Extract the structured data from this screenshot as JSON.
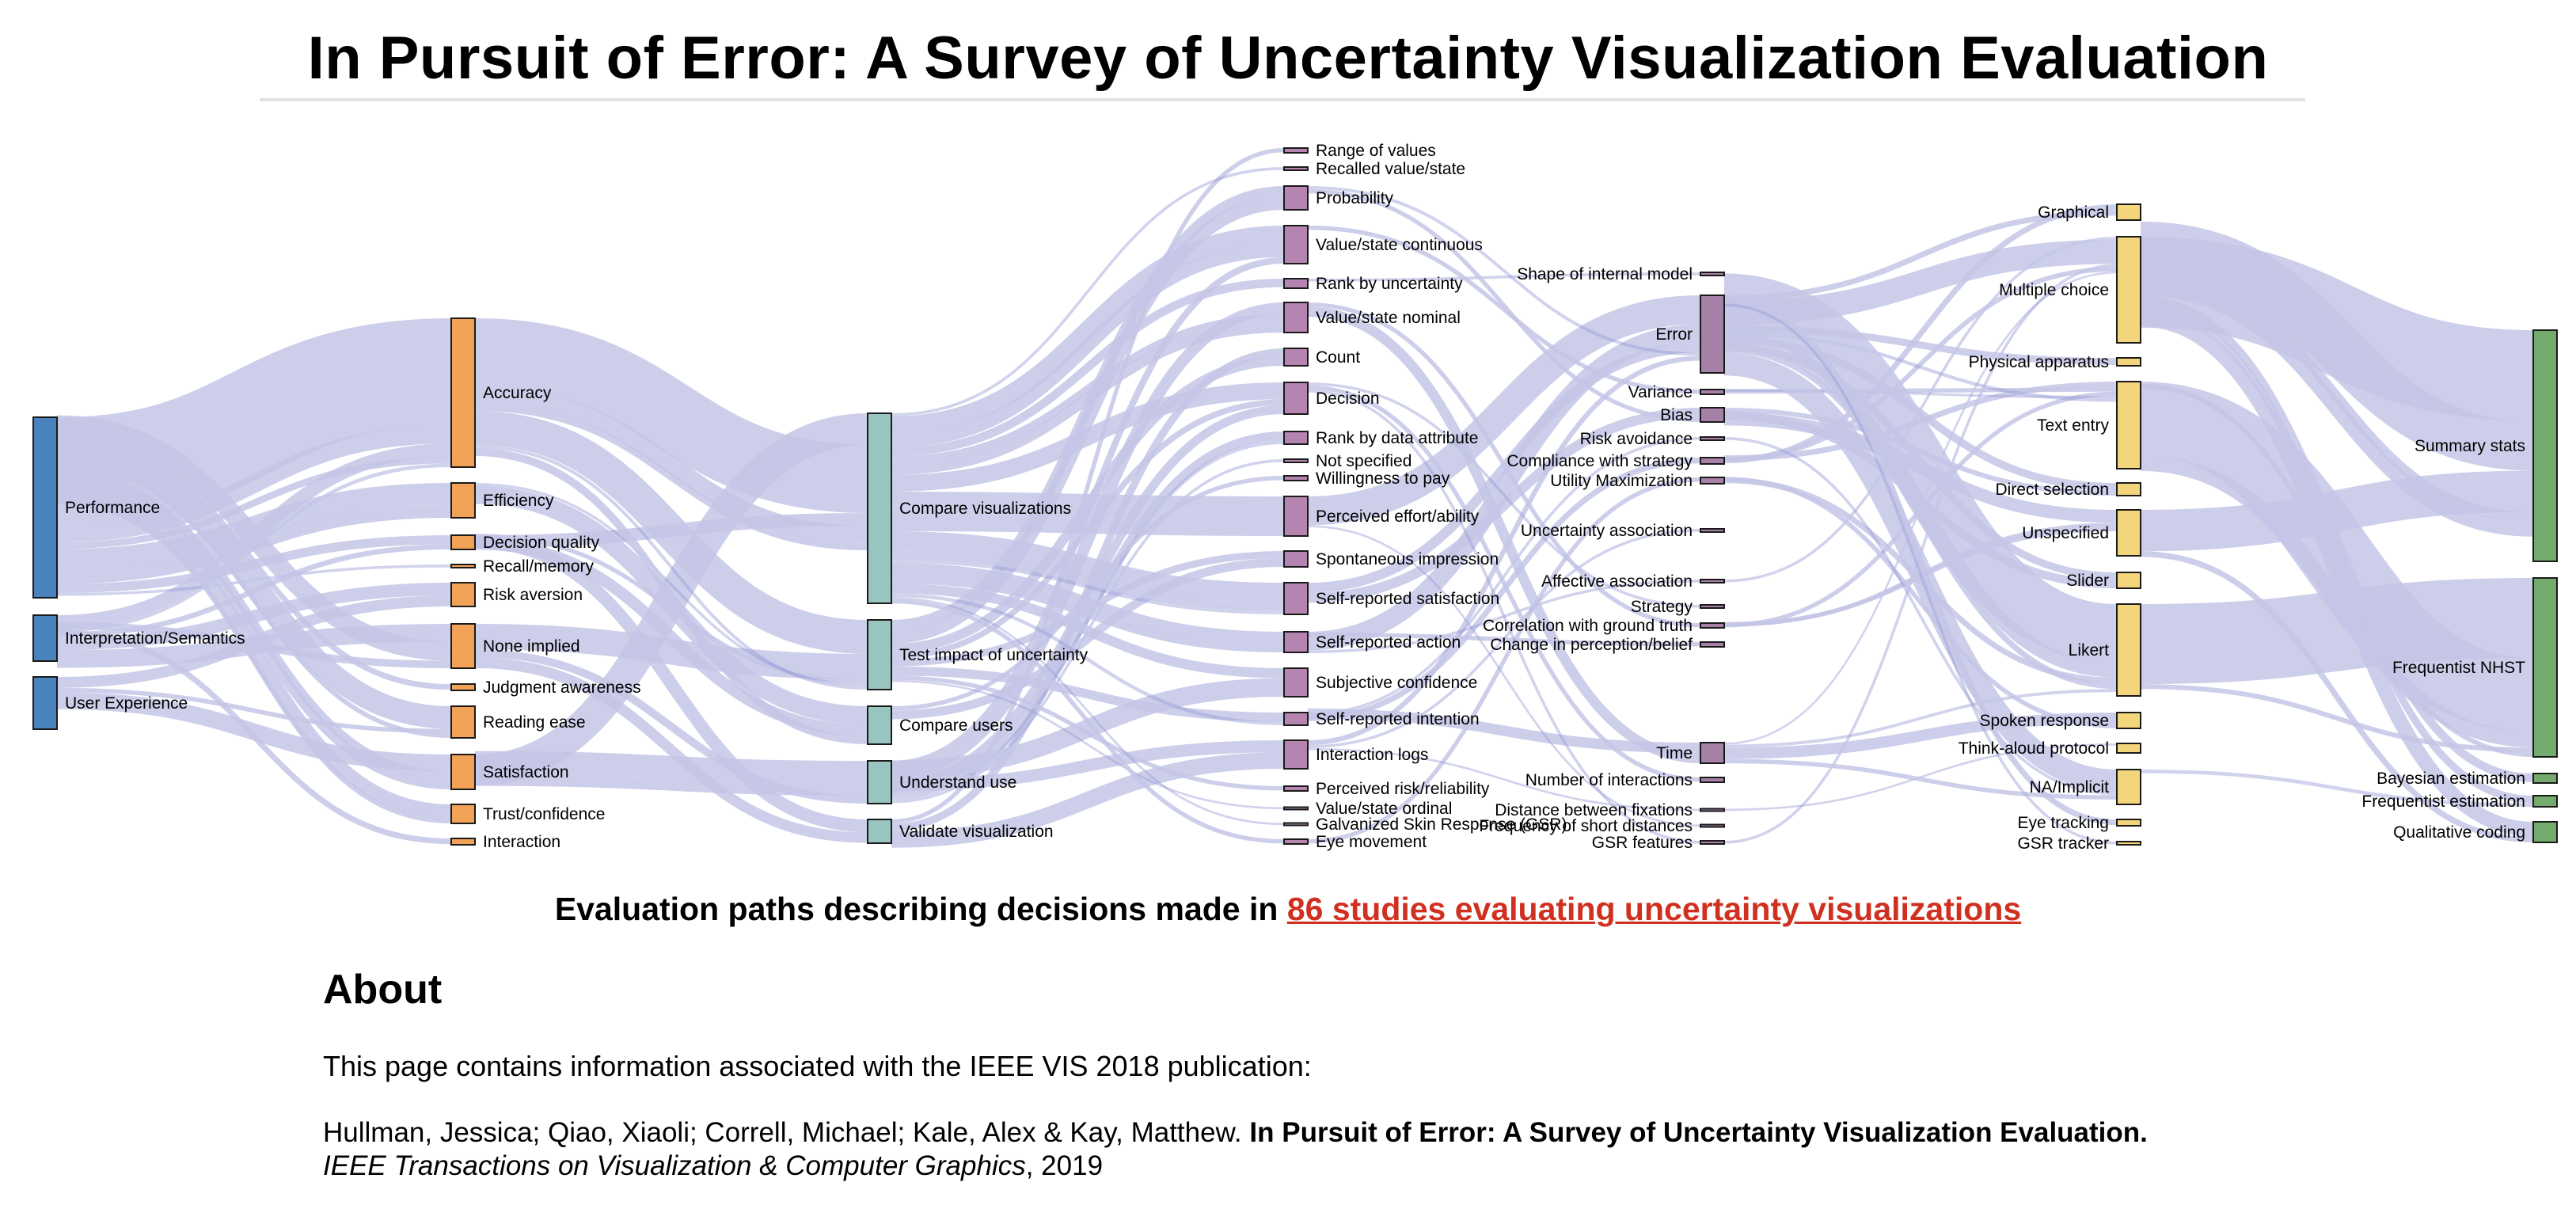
{
  "header": {
    "title": "In Pursuit of Error: A Survey of Uncertainty Visualization Evaluation"
  },
  "diagram": {
    "colors": {
      "link": "#c4c6e6",
      "link_dense": "#9a9dd6",
      "col0": "#4a82bb",
      "col1": "#f2a257",
      "col2": "#99c5c0",
      "col3": "#b584b0",
      "col4": "#a780a7",
      "col5": "#f3d67c",
      "col6": "#73ab6c"
    },
    "columns": [
      {
        "name": "source",
        "nodes": [
          "Performance",
          "Interpretation/Semantics",
          "User Experience"
        ]
      },
      {
        "name": "measure",
        "nodes": [
          "Accuracy",
          "Efficiency",
          "Decision quality",
          "Recall/memory",
          "Risk aversion",
          "None implied",
          "Judgment awareness",
          "Reading ease",
          "Satisfaction",
          "Trust/confidence",
          "Interaction"
        ]
      },
      {
        "name": "goal",
        "nodes": [
          "Compare visualizations",
          "Test impact of uncertainty",
          "Compare users",
          "Understand use",
          "Validate visualization"
        ]
      },
      {
        "name": "elicited",
        "nodes": [
          "Range of values",
          "Recalled value/state",
          "Probability",
          "Value/state continuous",
          "Rank by uncertainty",
          "Value/state nominal",
          "Count",
          "Decision",
          "Rank by data attribute",
          "Not specified",
          "Willingness to pay",
          "Perceived effort/ability",
          "Spontaneous impression",
          "Self-reported satisfaction",
          "Self-reported action",
          "Subjective confidence",
          "Self-reported intention",
          "Interaction logs",
          "Perceived risk/reliability",
          "Value/state ordinal",
          "Galvanized Skin Response (GSR)",
          "Eye movement"
        ]
      },
      {
        "name": "derived",
        "nodes": [
          "Shape of internal model",
          "Error",
          "Variance",
          "Bias",
          "Risk avoidance",
          "Compliance with strategy",
          "Utility Maximization",
          "Uncertainty association",
          "Affective association",
          "Strategy",
          "Correlation with ground truth",
          "Change in perception/belief",
          "Time",
          "Number of interactions",
          "Distance between fixations",
          "Frequency of short distances",
          "GSR features"
        ]
      },
      {
        "name": "method",
        "nodes": [
          "Graphical",
          "Multiple choice",
          "Physical apparatus",
          "Text entry",
          "Direct selection",
          "Unspecified",
          "Slider",
          "Likert",
          "Spoken response",
          "Think-aloud protocol",
          "NA/Implicit",
          "Eye tracking",
          "GSR tracker"
        ]
      },
      {
        "name": "analysis",
        "nodes": [
          "Summary stats",
          "Frequentist NHST",
          "Bayesian estimation",
          "Frequentist estimation",
          "Qualitative coding"
        ]
      }
    ]
  },
  "caption": {
    "prefix": "Evaluation paths describing decisions made in ",
    "link": "86 studies evaluating uncertainty visualizations"
  },
  "about": {
    "heading": "About",
    "intro": "This page contains information associated with the IEEE VIS 2018 publication:",
    "authors": "Hullman, Jessica; Qiao, Xiaoli; Correll, Michael; Kale, Alex & Kay, Matthew.",
    "paper_title": "In Pursuit of Error: A Survey of Uncertainty Visualization Evaluation.",
    "journal": "IEEE Transactions on Visualization & Computer Graphics",
    "year": ", 2019"
  }
}
